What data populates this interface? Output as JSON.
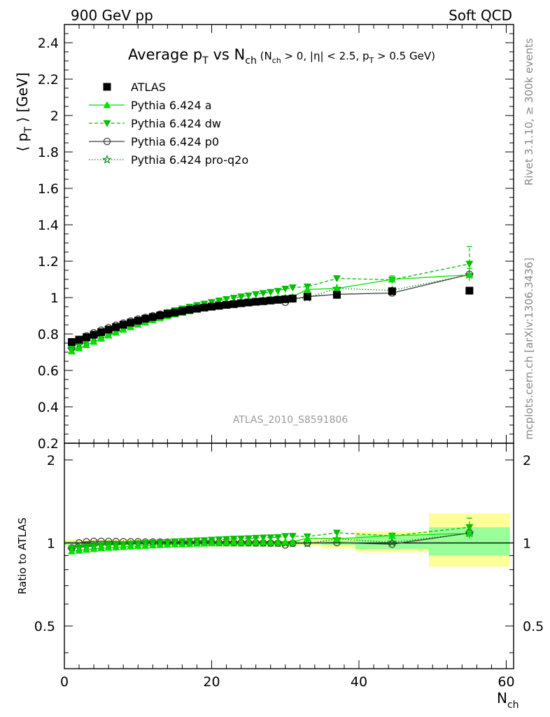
{
  "header": {
    "left": "900 GeV pp",
    "right": "Soft QCD"
  },
  "side_labels": {
    "rivet": "Rivet 3.1.10, ≥ 300k events",
    "mcplots": "mcplots.cern.ch [arXiv:1306.3436]"
  },
  "watermark": "ATLAS_2010_S8591806",
  "chart_data": [
    {
      "type": "scatter",
      "panel": "main",
      "title": "Average p_T vs N_ch (N_ch > 0, |η| < 2.5, p_T > 0.5 GeV)",
      "title_parts": {
        "main": "Average p",
        "main_sub": "T",
        "vs": " vs N",
        "vs_sub": "ch",
        "cond_open": " (N",
        "cond_sub1": "ch",
        "cond_mid": " > 0, |η| < 2.5, p",
        "cond_sub2": "T",
        "cond_end": " > 0.5 GeV)"
      },
      "ylabel": "⟨ p_T ⟩ [GeV]",
      "ylabel_parts": {
        "pre": "⟨ p",
        "sub": "T",
        "post": " ⟩ [GeV]"
      },
      "xlim": [
        0,
        61
      ],
      "ylim": [
        0.2,
        2.5
      ],
      "yticks": [
        0.2,
        0.4,
        0.6,
        0.8,
        1,
        1.2,
        1.4,
        1.6,
        1.8,
        2,
        2.2,
        2.4
      ],
      "ytick_labels": [
        "0.2",
        "0.4",
        "0.6",
        "0.8",
        "1",
        "1.2",
        "1.4",
        "1.6",
        "1.8",
        "2",
        "2.2",
        "2.4"
      ],
      "legend_position": "top-left",
      "series": [
        {
          "name": "ATLAS",
          "color": "#000000",
          "marker": "filled-square",
          "line": "none",
          "x": [
            1,
            2,
            3,
            4,
            5,
            6,
            7,
            8,
            9,
            10,
            11,
            12,
            13,
            14,
            15,
            16,
            17,
            18,
            19,
            20,
            21,
            22,
            23,
            24,
            25,
            26,
            27,
            28,
            29,
            30,
            31,
            33,
            37,
            44.5,
            55
          ],
          "y": [
            0.756,
            0.769,
            0.782,
            0.796,
            0.81,
            0.824,
            0.838,
            0.851,
            0.862,
            0.873,
            0.884,
            0.893,
            0.902,
            0.911,
            0.918,
            0.926,
            0.933,
            0.939,
            0.945,
            0.95,
            0.955,
            0.96,
            0.964,
            0.969,
            0.973,
            0.977,
            0.98,
            0.984,
            0.988,
            0.991,
            0.995,
            1.005,
            1.015,
            1.035,
            1.038
          ]
        },
        {
          "name": "Pythia 6.424 a",
          "color": "#00e000",
          "marker": "filled-triangle-up",
          "line": "solid",
          "x": [
            1,
            2,
            3,
            4,
            5,
            6,
            7,
            8,
            9,
            10,
            11,
            12,
            13,
            14,
            15,
            16,
            17,
            18,
            19,
            20,
            21,
            22,
            23,
            24,
            25,
            26,
            27,
            28,
            29,
            30,
            31,
            33,
            37,
            44.5,
            55
          ],
          "y": [
            0.705,
            0.722,
            0.74,
            0.758,
            0.775,
            0.792,
            0.808,
            0.824,
            0.838,
            0.852,
            0.864,
            0.876,
            0.887,
            0.898,
            0.908,
            0.917,
            0.926,
            0.934,
            0.942,
            0.949,
            0.956,
            0.962,
            0.968,
            0.973,
            0.979,
            0.984,
            0.988,
            0.993,
            0.997,
            1.001,
            1.005,
            1.045,
            1.05,
            1.1,
            1.125
          ]
        },
        {
          "name": "Pythia 6.424 dw",
          "color": "#00c000",
          "marker": "filled-triangle-down",
          "line": "dashed",
          "x": [
            1,
            2,
            3,
            4,
            5,
            6,
            7,
            8,
            9,
            10,
            11,
            12,
            13,
            14,
            15,
            16,
            17,
            18,
            19,
            20,
            21,
            22,
            23,
            24,
            25,
            26,
            27,
            28,
            29,
            30,
            31,
            33,
            37,
            44.5,
            55
          ],
          "y": [
            0.72,
            0.738,
            0.758,
            0.776,
            0.794,
            0.81,
            0.826,
            0.841,
            0.855,
            0.869,
            0.882,
            0.894,
            0.906,
            0.918,
            0.929,
            0.939,
            0.949,
            0.958,
            0.966,
            0.975,
            0.983,
            0.991,
            0.998,
            1.005,
            1.011,
            1.018,
            1.024,
            1.03,
            1.036,
            1.048,
            1.055,
            1.06,
            1.105,
            1.098,
            1.185
          ]
        },
        {
          "name": "Pythia 6.424 p0",
          "color": "#404040",
          "marker": "open-circle",
          "line": "solid",
          "x": [
            1,
            2,
            3,
            4,
            5,
            6,
            7,
            8,
            9,
            10,
            11,
            12,
            13,
            14,
            15,
            16,
            17,
            18,
            19,
            20,
            21,
            22,
            23,
            24,
            25,
            26,
            27,
            28,
            29,
            30,
            31,
            33,
            37,
            44.5,
            55
          ],
          "y": [
            0.725,
            0.77,
            0.79,
            0.807,
            0.821,
            0.835,
            0.848,
            0.86,
            0.871,
            0.882,
            0.891,
            0.9,
            0.909,
            0.917,
            0.924,
            0.931,
            0.937,
            0.943,
            0.948,
            0.953,
            0.958,
            0.962,
            0.966,
            0.97,
            0.974,
            0.977,
            0.98,
            0.983,
            0.986,
            0.974,
            0.992,
            1.005,
            1.018,
            1.025,
            1.128
          ]
        },
        {
          "name": "Pythia 6.424 pro-q2o",
          "color": "#008800",
          "marker": "open-star",
          "line": "dotted",
          "x": [
            1,
            2,
            3,
            4,
            5,
            6,
            7,
            8,
            9,
            10,
            11,
            12,
            13,
            14,
            15,
            16,
            17,
            18,
            19,
            20,
            21,
            22,
            23,
            24,
            25,
            26,
            27,
            28,
            29,
            30,
            31,
            33,
            37,
            44.5,
            55
          ],
          "y": [
            0.715,
            0.74,
            0.758,
            0.776,
            0.793,
            0.809,
            0.824,
            0.838,
            0.852,
            0.864,
            0.876,
            0.887,
            0.898,
            0.907,
            0.916,
            0.924,
            0.932,
            0.939,
            0.945,
            0.951,
            0.956,
            0.961,
            0.965,
            0.969,
            0.973,
            0.977,
            0.98,
            0.983,
            0.986,
            0.989,
            0.992,
            1.0,
            1.05,
            1.04,
            1.125
          ]
        }
      ],
      "error_bars": [
        {
          "series": "Pythia 6.424 dw",
          "x": 55,
          "low": 1.1,
          "high": 1.28
        },
        {
          "series": "Pythia 6.424 a",
          "x": 55,
          "low": 1.09,
          "high": 1.16
        },
        {
          "series": "Pythia 6.424 a",
          "x": 44.5,
          "low": 1.08,
          "high": 1.12
        },
        {
          "series": "Pythia 6.424 dw",
          "x": 37,
          "low": 1.09,
          "high": 1.12
        }
      ]
    },
    {
      "type": "scatter",
      "panel": "ratio",
      "ylabel": "Ratio to ATLAS",
      "xlabel": "N_ch",
      "xlabel_parts": {
        "main": "N",
        "sub": "ch"
      },
      "xlim": [
        0,
        61
      ],
      "ylim": [
        0.35,
        2.3
      ],
      "log_y": true,
      "xticks": [
        0,
        20,
        40,
        60
      ],
      "xtick_labels": [
        "0",
        "20",
        "40",
        "60"
      ],
      "yticks_labeled": [
        0.5,
        1,
        2
      ],
      "ytick_labels": [
        "0.5",
        "1",
        "2"
      ],
      "bands": [
        {
          "x": [
            0,
            31
          ],
          "outer": [
            0.97,
            1.03
          ],
          "inner": [
            0.985,
            1.015
          ]
        },
        {
          "x": [
            31,
            35
          ],
          "outer": [
            0.975,
            1.025
          ],
          "inner": [
            0.99,
            1.01
          ]
        },
        {
          "x": [
            35,
            39.5
          ],
          "outer": [
            0.955,
            1.05
          ],
          "inner": [
            0.985,
            1.02
          ]
        },
        {
          "x": [
            39.5,
            49.5
          ],
          "outer": [
            0.925,
            1.1
          ],
          "inner": [
            0.95,
            1.07
          ]
        },
        {
          "x": [
            49.5,
            60.5
          ],
          "outer": [
            0.82,
            1.28
          ],
          "inner": [
            0.9,
            1.14
          ]
        }
      ],
      "series": [
        {
          "name": "Pythia 6.424 a",
          "x": [
            1,
            2,
            3,
            4,
            5,
            6,
            7,
            8,
            9,
            10,
            11,
            12,
            13,
            14,
            15,
            16,
            17,
            18,
            19,
            20,
            21,
            22,
            23,
            24,
            25,
            26,
            27,
            28,
            29,
            30,
            31,
            33,
            37,
            44.5,
            55
          ],
          "y": [
            0.933,
            0.939,
            0.946,
            0.952,
            0.957,
            0.961,
            0.964,
            0.968,
            0.972,
            0.976,
            0.977,
            0.981,
            0.983,
            0.986,
            0.989,
            0.99,
            0.992,
            0.995,
            0.997,
            0.999,
            1.001,
            1.002,
            1.004,
            1.004,
            1.006,
            1.007,
            1.008,
            1.009,
            1.009,
            1.01,
            1.01,
            1.04,
            1.034,
            1.063,
            1.084
          ]
        },
        {
          "name": "Pythia 6.424 dw",
          "x": [
            1,
            2,
            3,
            4,
            5,
            6,
            7,
            8,
            9,
            10,
            11,
            12,
            13,
            14,
            15,
            16,
            17,
            18,
            19,
            20,
            21,
            22,
            23,
            24,
            25,
            26,
            27,
            28,
            29,
            30,
            31,
            33,
            37,
            44.5,
            55
          ],
          "y": [
            0.952,
            0.96,
            0.969,
            0.975,
            0.98,
            0.983,
            0.986,
            0.988,
            0.992,
            0.995,
            0.998,
            1.001,
            1.004,
            1.008,
            1.012,
            1.014,
            1.017,
            1.02,
            1.022,
            1.026,
            1.029,
            1.032,
            1.035,
            1.037,
            1.039,
            1.042,
            1.045,
            1.047,
            1.049,
            1.058,
            1.06,
            1.055,
            1.089,
            1.061,
            1.14
          ]
        },
        {
          "name": "Pythia 6.424 p0",
          "x": [
            1,
            2,
            3,
            4,
            5,
            6,
            7,
            8,
            9,
            10,
            11,
            12,
            13,
            14,
            15,
            16,
            17,
            18,
            19,
            20,
            21,
            22,
            23,
            24,
            25,
            26,
            27,
            28,
            29,
            30,
            31,
            33,
            37,
            44.5,
            55
          ],
          "y": [
            0.959,
            1.001,
            1.01,
            1.014,
            1.014,
            1.013,
            1.012,
            1.011,
            1.01,
            1.01,
            1.008,
            1.008,
            1.008,
            1.007,
            1.007,
            1.005,
            1.004,
            1.004,
            1.003,
            1.003,
            1.003,
            1.002,
            1.002,
            1.001,
            1.001,
            1.0,
            1.0,
            0.999,
            0.998,
            0.983,
            0.997,
            1.0,
            1.003,
            0.99,
            1.087
          ]
        },
        {
          "name": "Pythia 6.424 pro-q2o",
          "x": [
            1,
            2,
            3,
            4,
            5,
            6,
            7,
            8,
            9,
            10,
            11,
            12,
            13,
            14,
            15,
            16,
            17,
            18,
            19,
            20,
            21,
            22,
            23,
            24,
            25,
            26,
            27,
            28,
            29,
            30,
            31,
            33,
            37,
            44.5,
            55
          ],
          "y": [
            0.946,
            0.962,
            0.969,
            0.975,
            0.979,
            0.982,
            0.983,
            0.985,
            0.988,
            0.99,
            0.991,
            0.993,
            0.996,
            0.996,
            0.998,
            0.998,
            0.999,
            1.0,
            1.0,
            1.001,
            1.001,
            1.001,
            1.001,
            1.0,
            1.0,
            1.0,
            1.0,
            0.999,
            0.998,
            0.998,
            0.997,
            0.995,
            1.034,
            1.005,
            1.084
          ]
        }
      ],
      "error_bars": [
        {
          "series": "Pythia 6.424 dw",
          "x": 55,
          "low": 1.06,
          "high": 1.23
        },
        {
          "series": "Pythia 6.424 a",
          "x": 55,
          "low": 1.04,
          "high": 1.12
        }
      ]
    }
  ]
}
